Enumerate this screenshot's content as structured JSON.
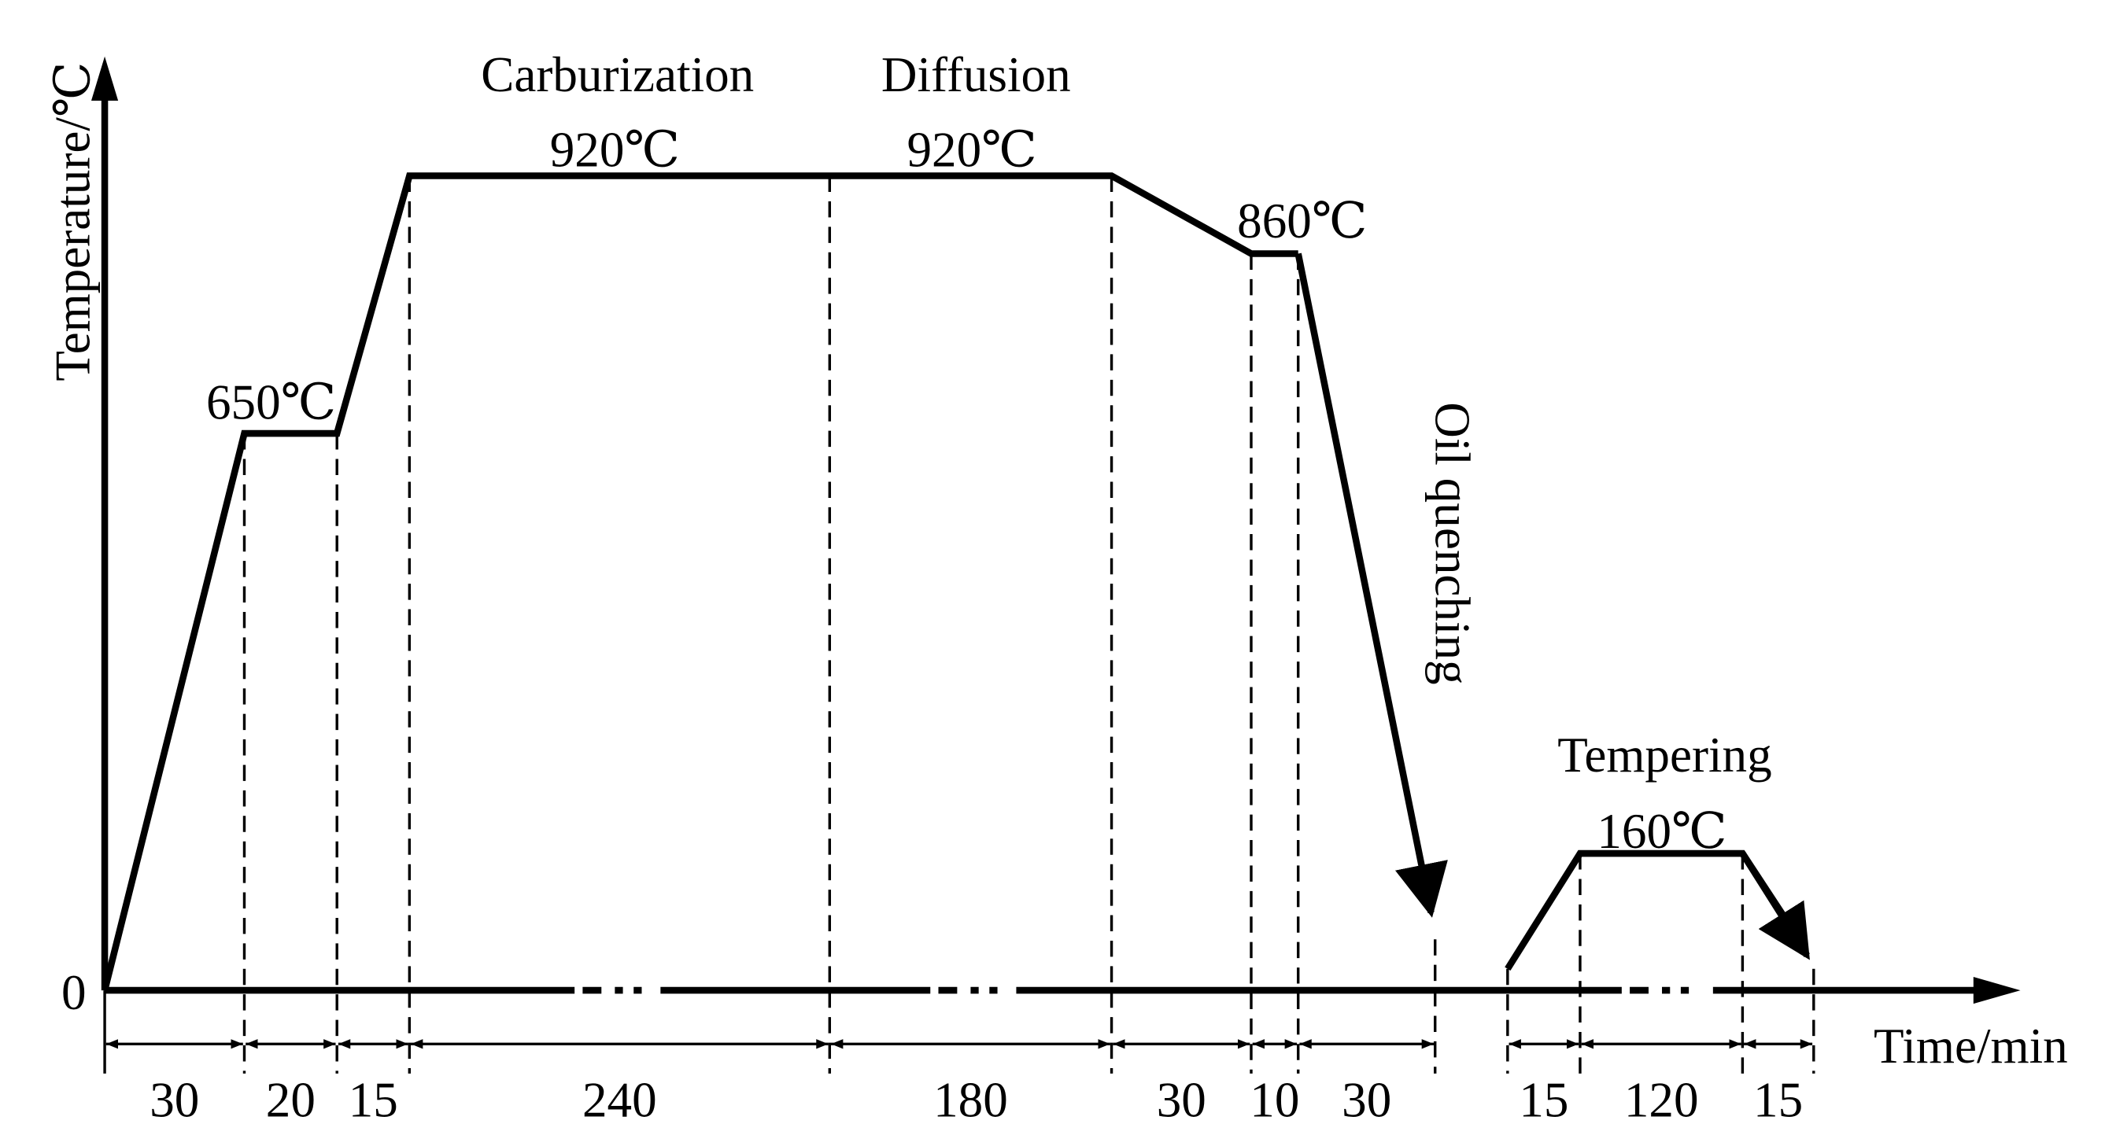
{
  "axes": {
    "y_label": "Temperature/℃",
    "x_label": "Time/min",
    "origin": "0"
  },
  "stages": {
    "carburization": "Carburization",
    "diffusion": "Diffusion",
    "quenching": "Oil quenching",
    "tempering": "Tempering"
  },
  "temperatures": {
    "preheat": "650℃",
    "carburization": "920℃",
    "diffusion": "920℃",
    "pre_quench": "860℃",
    "tempering": "160℃"
  },
  "durations": [
    30,
    20,
    15,
    240,
    180,
    30,
    10,
    30,
    15,
    120,
    15
  ]
}
